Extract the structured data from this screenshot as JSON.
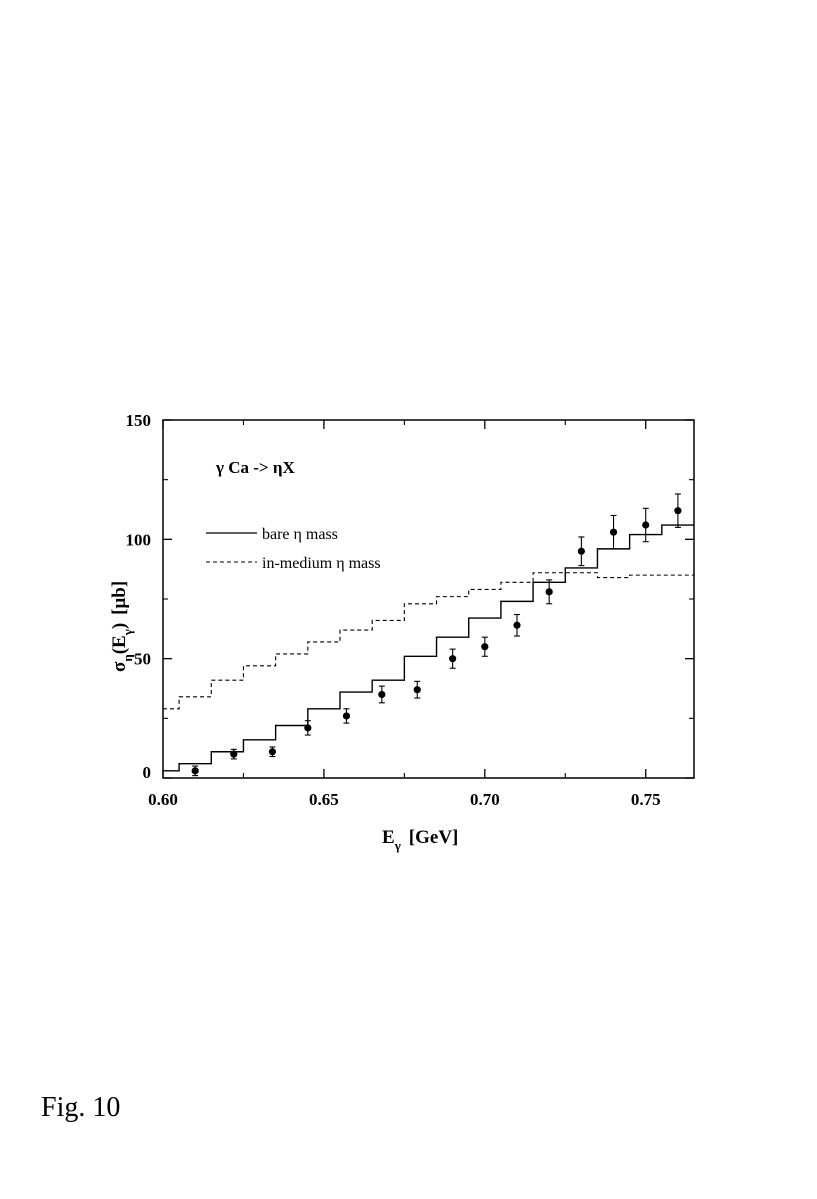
{
  "caption": "Fig. 10",
  "chart_data": {
    "type": "line",
    "annotation": "γ Ca -> ηX",
    "xlabel": {
      "main": "E",
      "sub": "γ",
      "unit": "[GeV]"
    },
    "ylabel": {
      "main": "σ",
      "sub1": "η",
      "paren_open": "(E",
      "sub2": "γ",
      "paren_close": ")",
      "unit": "[μb]"
    },
    "xlim": [
      0.6,
      0.765
    ],
    "ylim": [
      0,
      150
    ],
    "xticks": [
      0.6,
      0.65,
      0.7,
      0.75
    ],
    "xtick_labels": [
      "0.60",
      "0.65",
      "0.70",
      "0.75"
    ],
    "yticks": [
      0,
      50,
      100,
      150
    ],
    "ytick_labels": [
      "0",
      "50",
      "100",
      "150"
    ],
    "grid": false,
    "legend_position": "upper-left",
    "series": [
      {
        "name": "bare η mass",
        "style": "solid",
        "step": true,
        "x": [
          0.6,
          0.605,
          0.615,
          0.625,
          0.635,
          0.645,
          0.655,
          0.665,
          0.675,
          0.685,
          0.695,
          0.705,
          0.715,
          0.725,
          0.735,
          0.745,
          0.755,
          0.765
        ],
        "y": [
          3,
          6,
          11,
          16,
          22,
          29,
          36,
          41,
          51,
          59,
          67,
          74,
          82,
          88,
          96,
          102,
          106,
          106
        ]
      },
      {
        "name": "in-medium η mass",
        "style": "dashed",
        "step": true,
        "x": [
          0.6,
          0.605,
          0.615,
          0.625,
          0.635,
          0.645,
          0.655,
          0.665,
          0.675,
          0.685,
          0.695,
          0.705,
          0.715,
          0.725,
          0.735,
          0.745,
          0.755,
          0.765
        ],
        "y": [
          29,
          34,
          41,
          47,
          52,
          57,
          62,
          66,
          73,
          76,
          79,
          82,
          86,
          86,
          84,
          85,
          85,
          85
        ]
      },
      {
        "name": "data",
        "style": "points",
        "x": [
          0.61,
          0.622,
          0.634,
          0.645,
          0.657,
          0.668,
          0.679,
          0.69,
          0.7,
          0.71,
          0.72,
          0.73,
          0.74,
          0.75,
          0.76
        ],
        "y": [
          3,
          10,
          11,
          21,
          26,
          35,
          37,
          50,
          55,
          64,
          78,
          95,
          103,
          106,
          112
        ],
        "err": [
          2,
          2,
          2,
          3,
          3,
          3.5,
          3.5,
          4,
          4,
          4.5,
          5,
          6,
          7,
          7,
          7
        ]
      }
    ]
  }
}
